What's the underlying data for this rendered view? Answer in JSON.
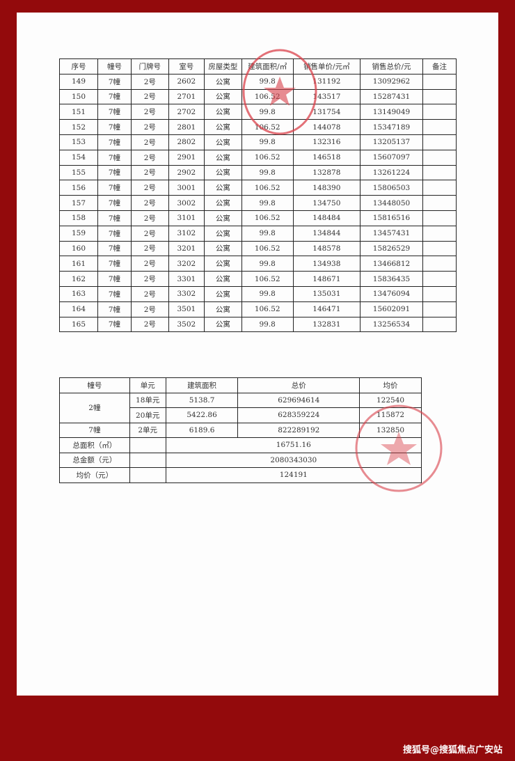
{
  "colors": {
    "border_bg": "#930a0c",
    "paper": "#fdfdfd",
    "stamp": "#d9404a"
  },
  "units_table": {
    "headers": [
      "序号",
      "幢号",
      "门牌号",
      "室号",
      "房屋类型",
      "建筑面积/㎡",
      "销售单价/元㎡",
      "销售总价/元",
      "备注"
    ],
    "rows": [
      [
        "149",
        "7幢",
        "2号",
        "2602",
        "公寓",
        "99.8",
        "131192",
        "13092962",
        ""
      ],
      [
        "150",
        "7幢",
        "2号",
        "2701",
        "公寓",
        "106.52",
        "143517",
        "15287431",
        ""
      ],
      [
        "151",
        "7幢",
        "2号",
        "2702",
        "公寓",
        "99.8",
        "131754",
        "13149049",
        ""
      ],
      [
        "152",
        "7幢",
        "2号",
        "2801",
        "公寓",
        "106.52",
        "144078",
        "15347189",
        ""
      ],
      [
        "153",
        "7幢",
        "2号",
        "2802",
        "公寓",
        "99.8",
        "132316",
        "13205137",
        ""
      ],
      [
        "154",
        "7幢",
        "2号",
        "2901",
        "公寓",
        "106.52",
        "146518",
        "15607097",
        ""
      ],
      [
        "155",
        "7幢",
        "2号",
        "2902",
        "公寓",
        "99.8",
        "132878",
        "13261224",
        ""
      ],
      [
        "156",
        "7幢",
        "2号",
        "3001",
        "公寓",
        "106.52",
        "148390",
        "15806503",
        ""
      ],
      [
        "157",
        "7幢",
        "2号",
        "3002",
        "公寓",
        "99.8",
        "134750",
        "13448050",
        ""
      ],
      [
        "158",
        "7幢",
        "2号",
        "3101",
        "公寓",
        "106.52",
        "148484",
        "15816516",
        ""
      ],
      [
        "159",
        "7幢",
        "2号",
        "3102",
        "公寓",
        "99.8",
        "134844",
        "13457431",
        ""
      ],
      [
        "160",
        "7幢",
        "2号",
        "3201",
        "公寓",
        "106.52",
        "148578",
        "15826529",
        ""
      ],
      [
        "161",
        "7幢",
        "2号",
        "3202",
        "公寓",
        "99.8",
        "134938",
        "13466812",
        ""
      ],
      [
        "162",
        "7幢",
        "2号",
        "3301",
        "公寓",
        "106.52",
        "148671",
        "15836435",
        ""
      ],
      [
        "163",
        "7幢",
        "2号",
        "3302",
        "公寓",
        "99.8",
        "135031",
        "13476094",
        ""
      ],
      [
        "164",
        "7幢",
        "2号",
        "3501",
        "公寓",
        "106.52",
        "146471",
        "15602091",
        ""
      ],
      [
        "165",
        "7幢",
        "2号",
        "3502",
        "公寓",
        "99.8",
        "132831",
        "13256534",
        ""
      ]
    ]
  },
  "summary_table": {
    "headers": [
      "幢号",
      "单元",
      "建筑面积",
      "总价",
      "均价"
    ],
    "building_2": {
      "label": "2幢",
      "units": [
        {
          "unit": "18单元",
          "area": "5138.7",
          "total": "629694614",
          "avg": "122540"
        },
        {
          "unit": "20单元",
          "area": "5422.86",
          "total": "628359224",
          "avg": "115872"
        }
      ]
    },
    "building_7": {
      "label": "7幢",
      "unit": "2单元",
      "area": "6189.6",
      "total": "822289192",
      "avg": "132850"
    },
    "total_area": {
      "label": "总面积（㎡）",
      "value": "16751.16"
    },
    "total_amount": {
      "label": "总金额（元）",
      "value": "2080343030"
    },
    "avg_price": {
      "label": "均价（元）",
      "value": "124191"
    }
  },
  "watermark": "搜狐号@搜狐焦点广安站"
}
